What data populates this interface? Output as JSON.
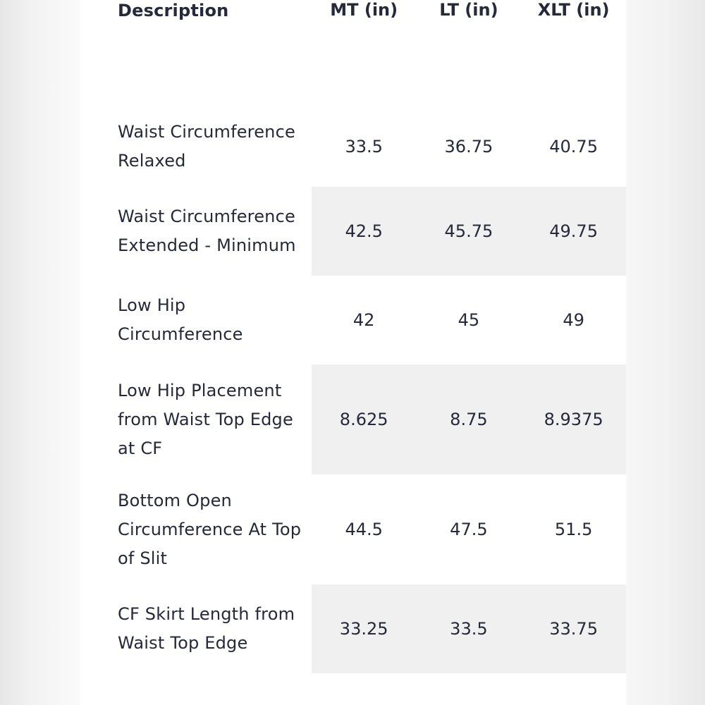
{
  "table": {
    "headers": [
      "Description",
      "MT (in)",
      "LT (in)",
      "XLT (in)"
    ],
    "rows": [
      {
        "description": "Waist Circumference Relaxed",
        "mt": "33.5",
        "lt": "36.75",
        "xlt": "40.75",
        "shaded": false
      },
      {
        "description": "Waist Circumference Extended - Minimum",
        "mt": "42.5",
        "lt": "45.75",
        "xlt": "49.75",
        "shaded": true
      },
      {
        "description": "Low Hip Circumference",
        "mt": "42",
        "lt": "45",
        "xlt": "49",
        "shaded": false
      },
      {
        "description": "Low Hip Placement from Waist Top Edge at CF",
        "mt": "8.625",
        "lt": "8.75",
        "xlt": "8.9375",
        "shaded": true
      },
      {
        "description": "Bottom Open Circumference At Top of Slit",
        "mt": "44.5",
        "lt": "47.5",
        "xlt": "51.5",
        "shaded": false
      },
      {
        "description": "CF Skirt Length from Waist Top Edge",
        "mt": "33.25",
        "lt": "33.5",
        "xlt": "33.75",
        "shaded": true
      }
    ]
  },
  "colors": {
    "text": "#25293a",
    "row_shade": "#f0f0f0",
    "background": "#ffffff"
  }
}
